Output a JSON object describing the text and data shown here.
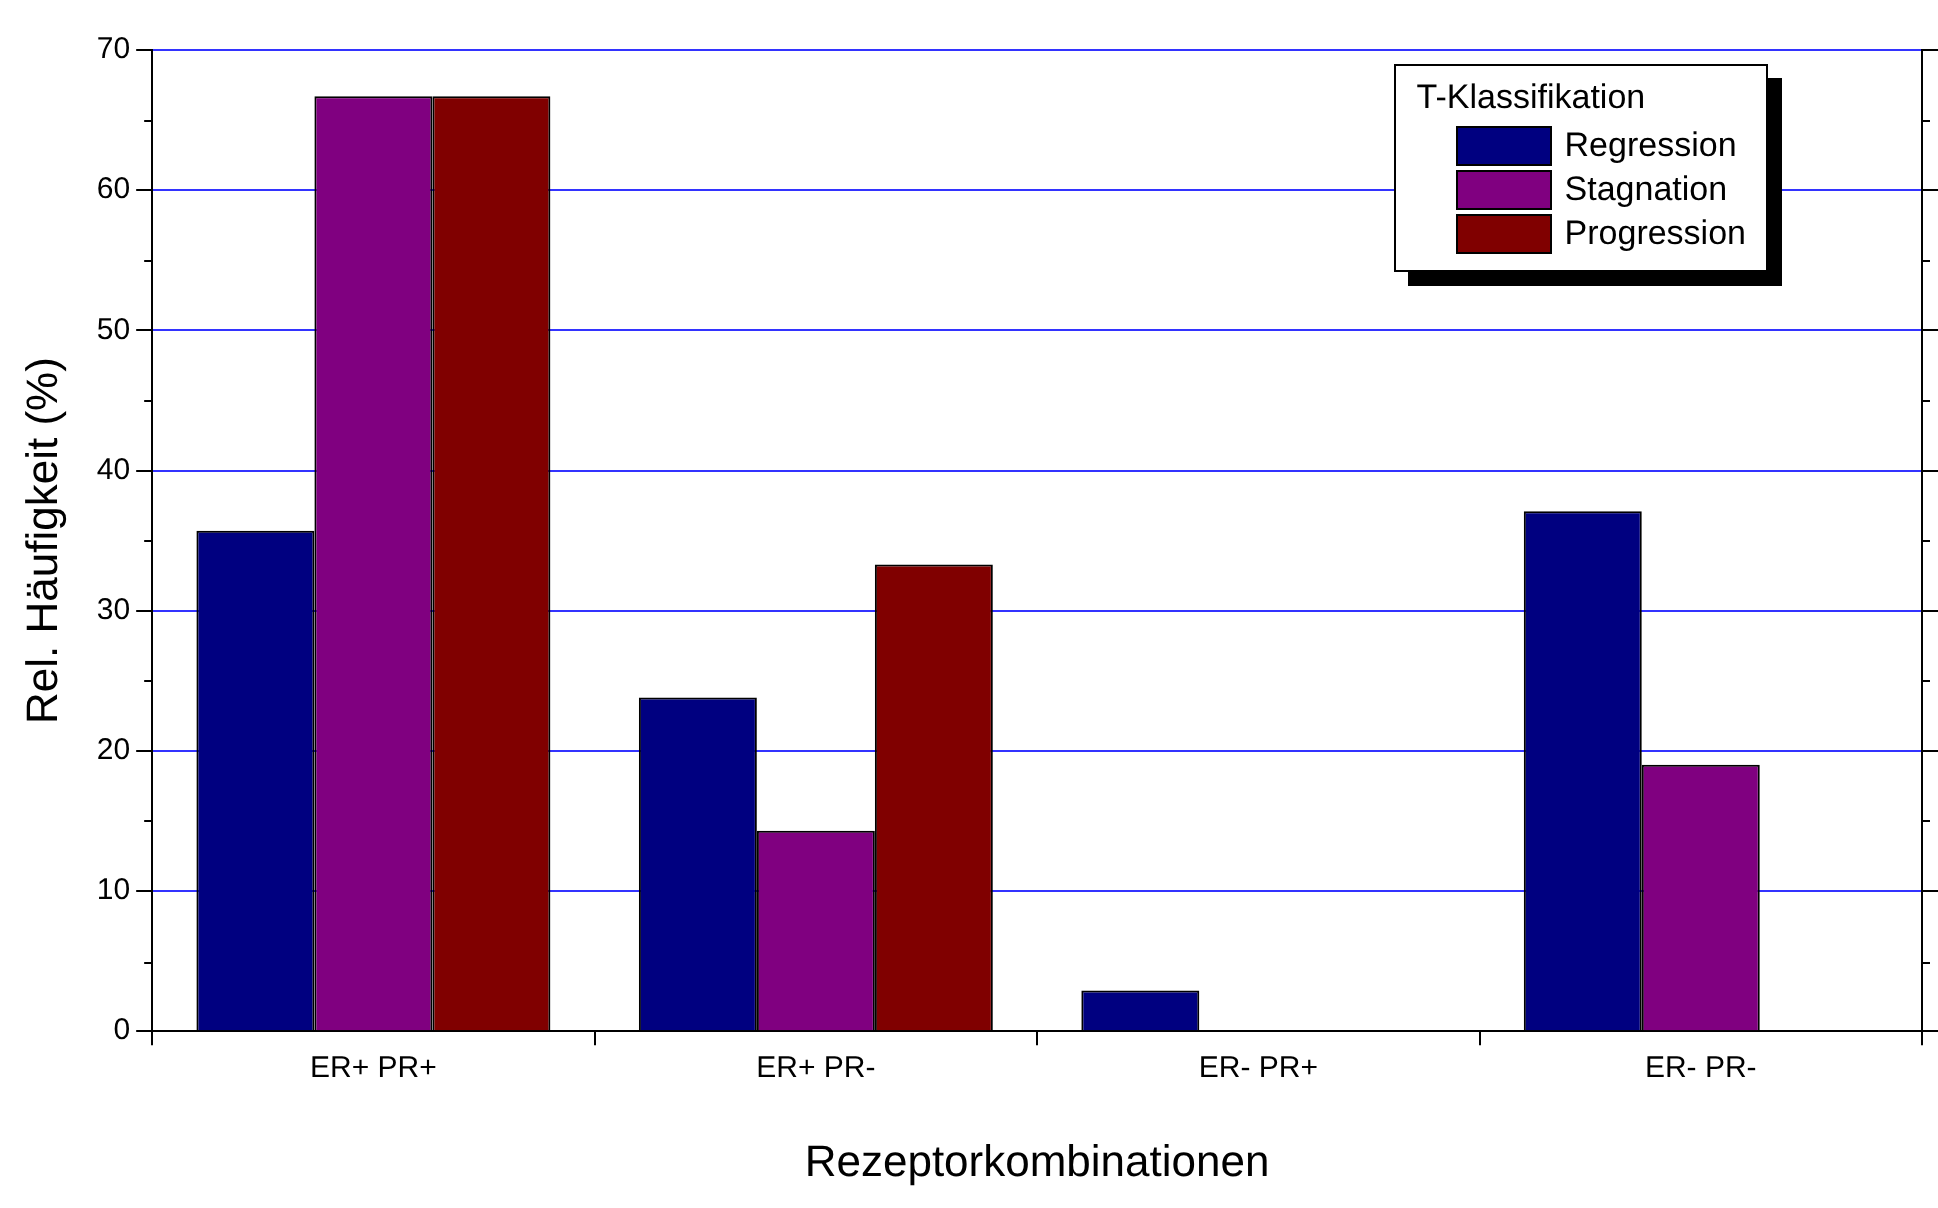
{
  "chart_data": {
    "type": "bar",
    "xlabel": "Rezeptorkombinationen",
    "ylabel": "Rel. Häufigkeit (%)",
    "legend_title": "T-Klassifikation",
    "categories": [
      "ER+ PR+",
      "ER+ PR-",
      "ER- PR+",
      "ER- PR-"
    ],
    "series": [
      {
        "name": "Regression",
        "color": "#000080",
        "values": [
          35.7,
          23.8,
          2.9,
          37.1
        ]
      },
      {
        "name": "Stagnation",
        "color": "#800080",
        "values": [
          66.7,
          14.3,
          0,
          19.0
        ]
      },
      {
        "name": "Progression",
        "color": "#800000",
        "values": [
          66.7,
          33.3,
          0,
          0
        ]
      }
    ],
    "ylim": [
      0,
      70
    ],
    "yticks": [
      0,
      10,
      20,
      30,
      40,
      50,
      60,
      70
    ],
    "grid": "y",
    "legend": "top right"
  }
}
